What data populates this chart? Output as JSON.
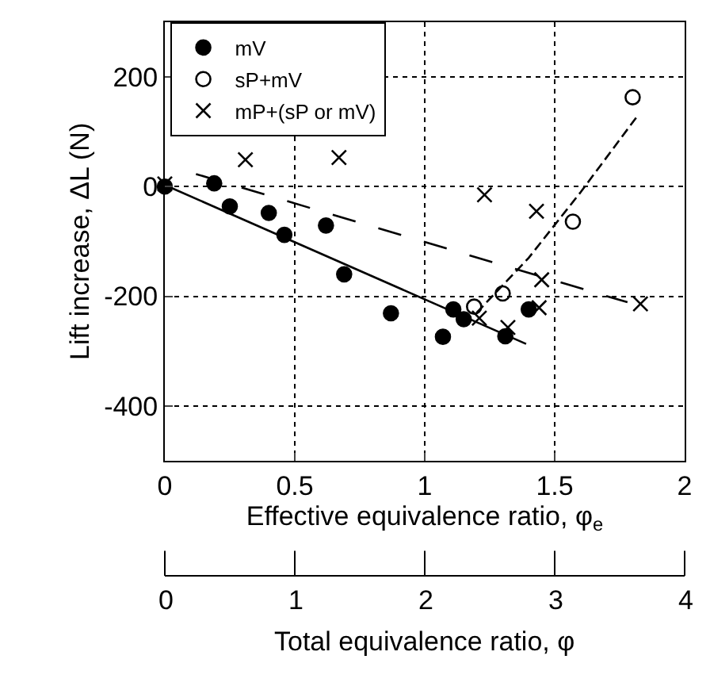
{
  "chart_data": {
    "type": "scatter",
    "xlabel": "Effective equivalence ratio, φ$_{e}$",
    "ylabel": "Lift increase, ΔL (N)",
    "x2label": "Total equivalence ratio, φ",
    "xlim": [
      0,
      2
    ],
    "xticks": [
      0,
      0.5,
      1,
      1.5,
      2
    ],
    "x2lim": [
      0,
      4
    ],
    "x2ticks": [
      0,
      1,
      2,
      3,
      4
    ],
    "ylim": [
      -500,
      300
    ],
    "yticks": [
      -400,
      -200,
      0,
      200
    ],
    "grid": true,
    "legend": "top left",
    "series": [
      {
        "name": "mV",
        "color": "#000000",
        "marker": "circle",
        "x": [
          0,
          0.19,
          0.25,
          0.4,
          0.46,
          0.62,
          0.69,
          0.87,
          1.07,
          1.11,
          1.15,
          1.31,
          1.4
        ],
        "values": [
          0,
          6,
          -36,
          -48,
          -88,
          -71,
          -160,
          -231,
          -274,
          -224,
          -242,
          -273,
          -224
        ]
      },
      {
        "name": "sP+mV",
        "color": "#000000",
        "marker": "circle-open",
        "x": [
          1.19,
          1.3,
          1.57,
          1.8
        ],
        "values": [
          -219,
          -195,
          -64,
          163
        ]
      },
      {
        "name": "mP+(sP or mV)",
        "color": "#000000",
        "marker": "cross",
        "x": [
          0,
          0.31,
          0.67,
          1.23,
          1.43,
          1.45,
          1.44,
          1.32,
          1.21,
          1.83
        ],
        "values": [
          5,
          49,
          53,
          -15,
          -45,
          -170,
          -221,
          -257,
          -240,
          -214
        ]
      },
      {
        "type": "line",
        "color": "#000000",
        "line_style": "solid",
        "x": [
          0,
          1.39
        ],
        "values": [
          3,
          -287
        ]
      },
      {
        "type": "line",
        "color": "#000000",
        "line_style": "dashed",
        "x": [
          1.2,
          1.4,
          1.6,
          1.82
        ],
        "values": [
          -230,
          -130,
          -10,
          130
        ]
      },
      {
        "type": "line",
        "color": "#000000",
        "line_style": "longdash",
        "x": [
          0.12,
          1.78
        ],
        "values": [
          23,
          -211
        ]
      }
    ]
  }
}
